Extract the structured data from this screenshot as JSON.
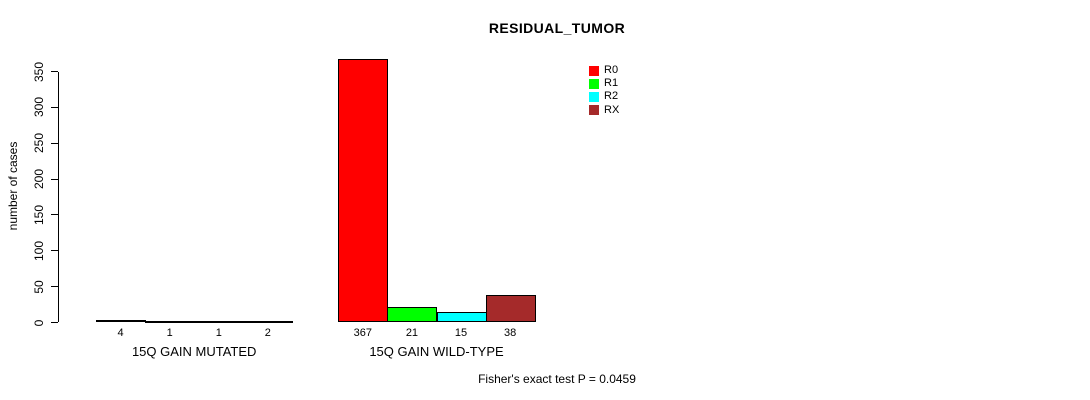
{
  "chart_data": {
    "type": "bar",
    "title": "RESIDUAL_TUMOR",
    "ylabel": "number of cases",
    "xlabel": "",
    "ylim": [
      0,
      350
    ],
    "yticks": [
      0,
      50,
      100,
      150,
      200,
      250,
      300,
      350
    ],
    "grid": false,
    "legend_position": "top-right",
    "categories": [
      "15Q GAIN MUTATED",
      "15Q GAIN WILD-TYPE"
    ],
    "series": [
      {
        "name": "R0",
        "color": "#ff0000",
        "values": [
          4,
          367
        ]
      },
      {
        "name": "R1",
        "color": "#00ff00",
        "values": [
          1,
          21
        ]
      },
      {
        "name": "R2",
        "color": "#00ffff",
        "values": [
          1,
          15
        ]
      },
      {
        "name": "RX",
        "color": "#a52a2a",
        "values": [
          2,
          38
        ]
      }
    ],
    "bar_value_labels": [
      [
        "4",
        "1",
        "1",
        "2"
      ],
      [
        "367",
        "21",
        "15",
        "38"
      ]
    ],
    "annotation": "Fisher's exact test P = 0.0459"
  }
}
